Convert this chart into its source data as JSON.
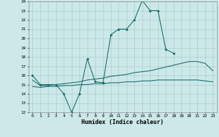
{
  "bg_color": "#cce8e8",
  "grid_color": "#aacccc",
  "line_color": "#1a6b6b",
  "xlabel": "Humidex (Indice chaleur)",
  "xmin": 0,
  "xmax": 23,
  "ymin": 12,
  "ymax": 24,
  "series1": {
    "x": [
      0,
      1,
      2,
      3,
      4,
      5,
      6,
      7,
      8,
      9,
      10,
      11,
      12,
      13,
      14,
      15,
      16,
      17,
      18
    ],
    "y": [
      16,
      15,
      15,
      15,
      14,
      12,
      14,
      17.8,
      15.3,
      15.2,
      20.4,
      21,
      21,
      22,
      24.1,
      23,
      23,
      18.8,
      18.4
    ]
  },
  "series2": {
    "x": [
      0,
      1,
      2,
      3,
      4,
      5,
      6,
      7,
      8,
      9,
      10,
      11,
      12,
      13,
      14,
      15,
      16,
      17,
      18,
      19,
      20,
      21,
      22,
      23
    ],
    "y": [
      15.5,
      14.9,
      14.9,
      15.0,
      15.1,
      15.2,
      15.3,
      15.5,
      15.6,
      15.7,
      15.9,
      16.0,
      16.1,
      16.3,
      16.4,
      16.5,
      16.7,
      16.9,
      17.1,
      17.3,
      17.5,
      17.5,
      17.3,
      16.5
    ]
  },
  "series3": {
    "x": [
      0,
      1,
      2,
      3,
      4,
      5,
      6,
      7,
      8,
      9,
      10,
      11,
      12,
      13,
      14,
      15,
      16,
      17,
      18,
      19,
      20,
      21,
      22,
      23
    ],
    "y": [
      14.8,
      14.7,
      14.8,
      14.8,
      14.9,
      14.9,
      15.0,
      15.0,
      15.1,
      15.1,
      15.2,
      15.2,
      15.3,
      15.3,
      15.4,
      15.4,
      15.5,
      15.5,
      15.5,
      15.5,
      15.5,
      15.5,
      15.4,
      15.3
    ]
  },
  "marker_x": [
    0,
    1,
    2,
    3,
    4,
    5,
    6,
    7,
    8,
    9,
    10,
    11,
    12,
    13,
    14,
    15,
    16,
    17,
    18
  ],
  "marker_y": [
    16,
    15,
    15,
    15,
    14,
    12,
    14,
    17.8,
    15.3,
    15.2,
    20.4,
    21,
    21,
    22,
    24.1,
    23,
    23,
    18.8,
    18.4
  ]
}
